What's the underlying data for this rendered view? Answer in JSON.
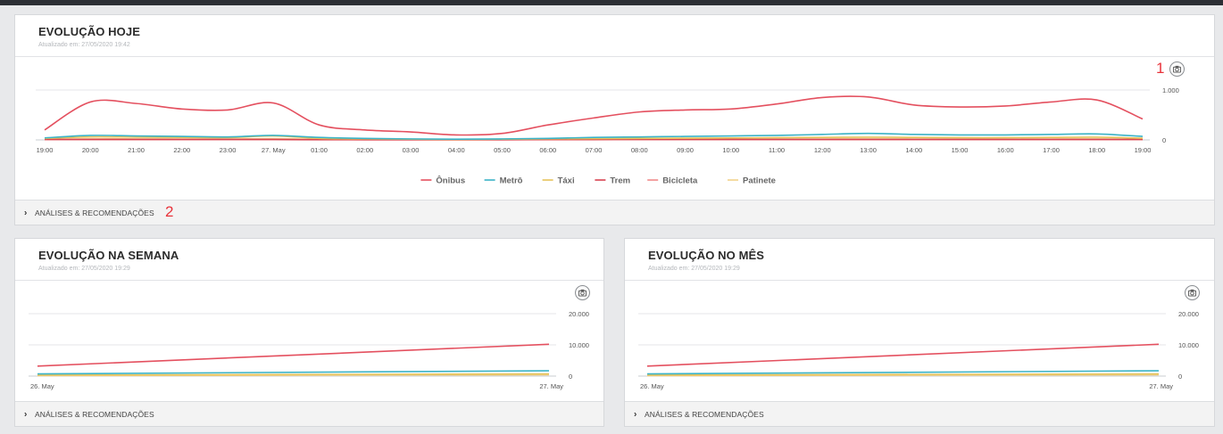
{
  "cards": {
    "today": {
      "title": "EVOLUÇÃO HOJE",
      "updated": "Atualizado em: 27/05/2020 19:42",
      "footer": "ANÁLISES & RECOMENDAÇÕES",
      "annotation_camera": "1",
      "annotation_footer": "2"
    },
    "week": {
      "title": "EVOLUÇÃO NA SEMANA",
      "updated": "Atualizado em: 27/05/2020 19:29",
      "footer": "ANÁLISES & RECOMENDAÇÕES"
    },
    "month": {
      "title": "EVOLUÇÃO NO MÊS",
      "updated": "Atualizado em: 27/05/2020 19:29",
      "footer": "ANÁLISES & RECOMENDAÇÕES"
    }
  },
  "chart_data": [
    {
      "id": "today",
      "type": "line",
      "x": [
        "19:00",
        "20:00",
        "21:00",
        "22:00",
        "23:00",
        "27. May",
        "01:00",
        "02:00",
        "03:00",
        "04:00",
        "05:00",
        "06:00",
        "07:00",
        "08:00",
        "09:00",
        "10:00",
        "11:00",
        "12:00",
        "13:00",
        "14:00",
        "15:00",
        "16:00",
        "17:00",
        "18:00",
        "19:00"
      ],
      "y_ticks": [
        "0",
        "1.000"
      ],
      "ylim": [
        0,
        1000
      ],
      "legend": "bottom-center",
      "series": [
        {
          "name": "Ônibus",
          "color": "#e4505f",
          "values": [
            200,
            760,
            730,
            620,
            600,
            740,
            300,
            200,
            160,
            100,
            130,
            300,
            440,
            560,
            600,
            620,
            720,
            850,
            860,
            700,
            660,
            680,
            760,
            800,
            420
          ]
        },
        {
          "name": "Metrô",
          "color": "#3bb3c7",
          "values": [
            40,
            90,
            80,
            70,
            60,
            90,
            50,
            30,
            20,
            15,
            20,
            30,
            50,
            60,
            70,
            80,
            90,
            110,
            130,
            110,
            100,
            100,
            110,
            120,
            70
          ]
        },
        {
          "name": "Táxi",
          "color": "#e6c35b",
          "values": [
            30,
            60,
            55,
            50,
            45,
            80,
            30,
            20,
            15,
            10,
            15,
            20,
            25,
            30,
            35,
            40,
            45,
            50,
            55,
            50,
            45,
            45,
            50,
            55,
            35
          ]
        },
        {
          "name": "Trem",
          "color": "#d94452",
          "values": [
            10,
            10,
            10,
            10,
            10,
            10,
            5,
            5,
            5,
            5,
            5,
            10,
            10,
            10,
            10,
            10,
            10,
            10,
            10,
            10,
            10,
            10,
            10,
            10,
            10
          ]
        },
        {
          "name": "Bicicleta",
          "color": "#f08a8a",
          "values": [
            5,
            5,
            5,
            5,
            5,
            5,
            3,
            2,
            2,
            2,
            2,
            3,
            4,
            5,
            5,
            5,
            5,
            5,
            5,
            5,
            5,
            5,
            5,
            5,
            5
          ]
        },
        {
          "name": "Patinete",
          "color": "#f2d28a",
          "values": [
            8,
            20,
            20,
            18,
            16,
            25,
            10,
            6,
            5,
            4,
            5,
            8,
            10,
            12,
            14,
            15,
            16,
            18,
            20,
            18,
            16,
            16,
            18,
            20,
            12
          ]
        }
      ]
    },
    {
      "id": "week",
      "type": "line",
      "x": [
        "26. May",
        "27. May"
      ],
      "y_ticks": [
        "0",
        "10.000",
        "20.000"
      ],
      "ylim": [
        0,
        20000
      ],
      "series": [
        {
          "name": "Ônibus",
          "color": "#e4505f",
          "values": [
            3200,
            10200
          ]
        },
        {
          "name": "Metrô",
          "color": "#3bb3c7",
          "values": [
            700,
            1700
          ]
        },
        {
          "name": "Táxi",
          "color": "#e6c35b",
          "values": [
            300,
            700
          ]
        },
        {
          "name": "Patinete",
          "color": "#f2d28a",
          "values": [
            150,
            400
          ]
        }
      ]
    },
    {
      "id": "month",
      "type": "line",
      "x": [
        "26. May",
        "27. May"
      ],
      "y_ticks": [
        "0",
        "10.000",
        "20.000"
      ],
      "ylim": [
        0,
        20000
      ],
      "series": [
        {
          "name": "Ônibus",
          "color": "#e4505f",
          "values": [
            3200,
            10200
          ]
        },
        {
          "name": "Metrô",
          "color": "#3bb3c7",
          "values": [
            700,
            1700
          ]
        },
        {
          "name": "Táxi",
          "color": "#e6c35b",
          "values": [
            300,
            700
          ]
        },
        {
          "name": "Patinete",
          "color": "#f2d28a",
          "values": [
            150,
            400
          ]
        }
      ]
    }
  ],
  "icons": {
    "camera": "camera-icon",
    "chevron": "chevron-right-icon"
  },
  "colors": {
    "page_bg": "#e8e9eb",
    "topbar": "#2c2f35",
    "annotation": "#e8323a"
  }
}
